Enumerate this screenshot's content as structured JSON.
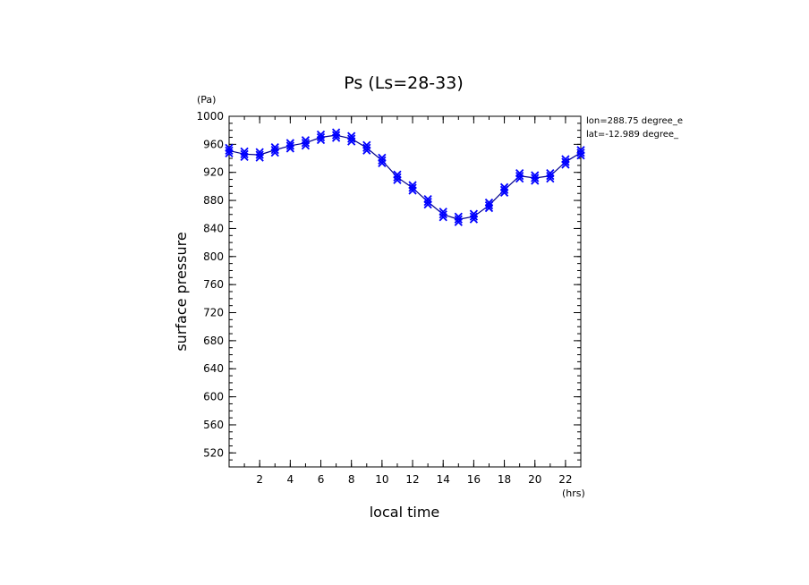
{
  "chart_data": {
    "type": "line",
    "title": "Ps (Ls=28-33)",
    "xlabel": "local time",
    "ylabel": "surface pressure",
    "x_unit": "(hrs)",
    "y_unit": "(Pa)",
    "xlim": [
      0,
      23
    ],
    "ylim": [
      500,
      1000
    ],
    "x_ticks": [
      2,
      4,
      6,
      8,
      10,
      12,
      14,
      16,
      18,
      20,
      22
    ],
    "y_ticks": [
      520,
      560,
      600,
      640,
      680,
      720,
      760,
      800,
      840,
      880,
      920,
      960,
      1000
    ],
    "grid": false,
    "annotations": [
      "lon=288.75 degree_e",
      "lat=-12.989 degree_"
    ],
    "series": [
      {
        "marker": "x",
        "color": "#0000ff",
        "line_color": "#00008b",
        "x": [
          0,
          1,
          2,
          3,
          4,
          5,
          6,
          7,
          8,
          9,
          10,
          11,
          12,
          13,
          14,
          15,
          16,
          17,
          18,
          19,
          20,
          21,
          22,
          23
        ],
        "y": [
          951,
          946,
          945,
          952,
          958,
          962,
          970,
          973,
          968,
          955,
          937,
          913,
          898,
          878,
          860,
          853,
          857,
          873,
          895,
          915,
          912,
          915,
          935,
          948
        ]
      }
    ]
  }
}
